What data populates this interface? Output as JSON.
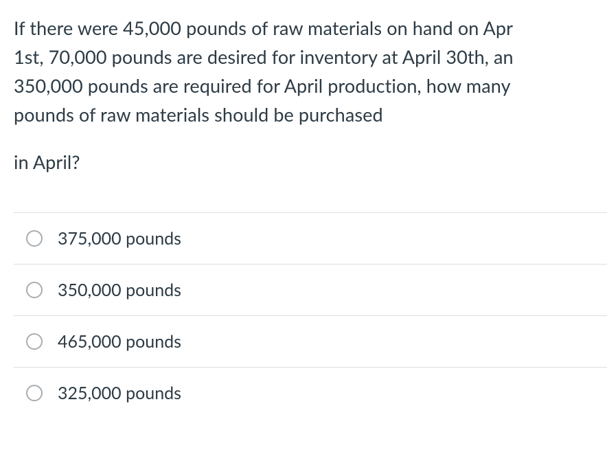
{
  "question": {
    "line1": "If there were 45,000 pounds of raw materials on hand on Apr",
    "line2": "1st, 70,000 pounds are desired for inventory at April 30th, an",
    "line3": "350,000 pounds are required for April production, how many",
    "line4": "pounds of raw materials should be purchased",
    "line5": "in April?"
  },
  "options": [
    {
      "label": "375,000 pounds"
    },
    {
      "label": "350,000 pounds"
    },
    {
      "label": "465,000 pounds"
    },
    {
      "label": "325,000 pounds"
    }
  ],
  "colors": {
    "text": "#2d3b45",
    "border": "#dcdee1",
    "radio_border": "#a7adb2",
    "background": "#ffffff"
  },
  "typography": {
    "question_fontsize": 27,
    "option_fontsize": 25,
    "line_height": 1.55
  }
}
